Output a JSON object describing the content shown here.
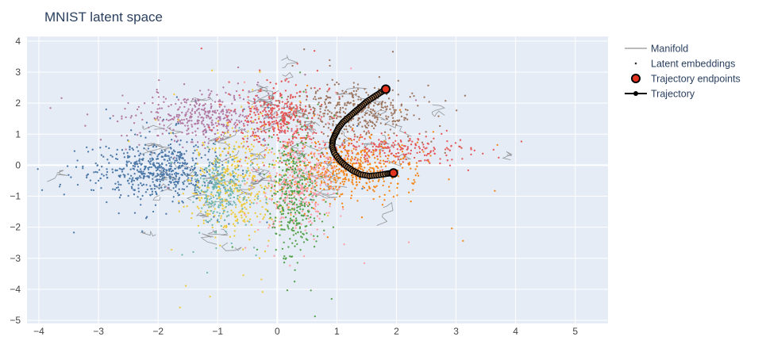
{
  "chart_data": {
    "type": "scatter",
    "title": "MNIST latent space",
    "xlabel": "",
    "ylabel": "",
    "xlim": [
      -4.2,
      5.55
    ],
    "ylim": [
      -5.1,
      4.15
    ],
    "x_ticks": [
      -4,
      -3,
      -2,
      -1,
      0,
      1,
      2,
      3,
      4,
      5
    ],
    "y_ticks": [
      4,
      3,
      2,
      1,
      0,
      -1,
      -2,
      -3,
      -4,
      -5
    ],
    "grid": true,
    "background": "#e5ecf6",
    "legend_position": "top-right outside",
    "legend": {
      "manifold": "Manifold",
      "embeddings": "Latent embeddings",
      "endpoints": "Trajectory endpoints",
      "trajectory": "Trajectory"
    },
    "clusters": [
      {
        "color": "#4c78a8",
        "center": [
          -1.95,
          -0.2
        ],
        "sd": [
          0.55,
          0.48
        ],
        "n": 620
      },
      {
        "color": "#b279a2",
        "center": [
          -1.25,
          1.55
        ],
        "sd": [
          0.55,
          0.38
        ],
        "n": 420
      },
      {
        "color": "#e45756",
        "center": [
          0.05,
          1.55
        ],
        "sd": [
          0.33,
          0.45
        ],
        "n": 380
      },
      {
        "color": "#9d755d",
        "center": [
          1.3,
          1.75
        ],
        "sd": [
          0.5,
          0.4
        ],
        "n": 400
      },
      {
        "color": "#e45756",
        "center": [
          1.95,
          0.5
        ],
        "sd": [
          0.65,
          0.22
        ],
        "n": 240
      },
      {
        "color": "#f58518",
        "center": [
          1.2,
          -0.15
        ],
        "sd": [
          0.45,
          0.45
        ],
        "n": 480
      },
      {
        "color": "#eeca3b",
        "center": [
          -0.7,
          -0.6
        ],
        "sd": [
          0.35,
          0.85
        ],
        "n": 420
      },
      {
        "color": "#72b7b2",
        "center": [
          -0.95,
          -0.85
        ],
        "sd": [
          0.22,
          0.55
        ],
        "n": 260
      },
      {
        "color": "#ff9da6",
        "center": [
          0.35,
          -0.6
        ],
        "sd": [
          0.32,
          0.75
        ],
        "n": 360
      },
      {
        "color": "#54a24b",
        "center": [
          0.28,
          -1.0
        ],
        "sd": [
          0.2,
          1.0
        ],
        "n": 360
      }
    ],
    "series": [
      {
        "name": "Trajectory",
        "color": "#000000",
        "x": [
          1.82,
          1.74,
          1.62,
          1.5,
          1.4,
          1.3,
          1.2,
          1.1,
          1.02,
          0.97,
          0.93,
          0.92,
          0.96,
          1.05,
          1.15,
          1.27,
          1.4,
          1.55,
          1.7,
          1.85,
          1.95
        ],
        "y": [
          2.45,
          2.35,
          2.2,
          2.05,
          1.88,
          1.72,
          1.55,
          1.38,
          1.18,
          0.98,
          0.8,
          0.6,
          0.38,
          0.15,
          -0.02,
          -0.18,
          -0.3,
          -0.35,
          -0.32,
          -0.27,
          -0.25
        ]
      },
      {
        "name": "Trajectory endpoints",
        "color": "#e4341f",
        "x": [
          1.82,
          1.95
        ],
        "y": [
          2.45,
          -0.25
        ]
      }
    ]
  }
}
